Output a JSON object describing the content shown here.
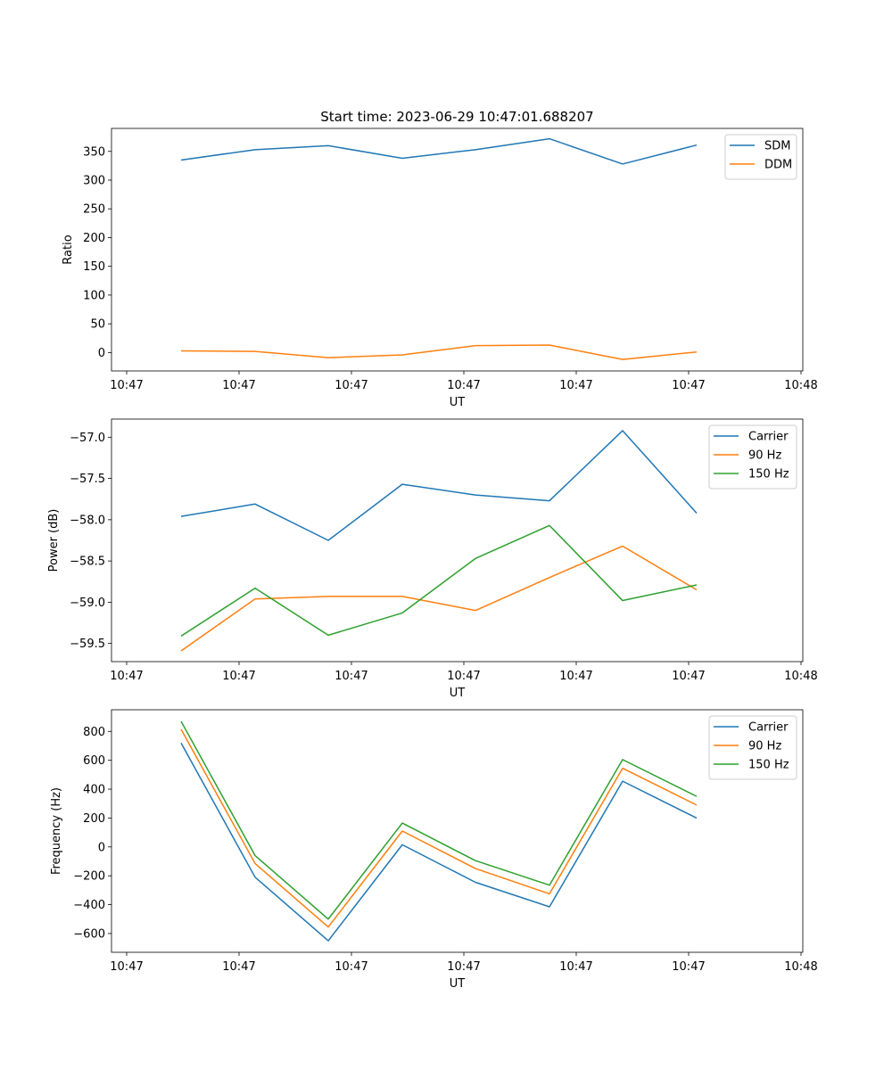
{
  "title": "Start time: 2023-06-29 10:47:01.688207",
  "chart_data": [
    {
      "type": "line",
      "xlabel": "UT",
      "ylabel": "Ratio",
      "x_tick_labels": [
        "10:47",
        "10:47",
        "10:47",
        "10:47",
        "10:47",
        "10:47",
        "10:48"
      ],
      "y_ticks": [
        0,
        50,
        100,
        150,
        200,
        250,
        300,
        350
      ],
      "ylim": [
        -32,
        390
      ],
      "grid": false,
      "legend": "top-right",
      "series": [
        {
          "name": "SDM",
          "color": "#1f77b4",
          "values": [
            335,
            353,
            360,
            338,
            353,
            372,
            328,
            361
          ]
        },
        {
          "name": "DDM",
          "color": "#ff7f0e",
          "values": [
            3,
            2,
            -9,
            -4,
            12,
            13,
            -12,
            1
          ]
        }
      ]
    },
    {
      "type": "line",
      "xlabel": "UT",
      "ylabel": "Power (dB)",
      "x_tick_labels": [
        "10:47",
        "10:47",
        "10:47",
        "10:47",
        "10:47",
        "10:47",
        "10:48"
      ],
      "y_ticks": [
        -59.5,
        -59.0,
        -58.5,
        -58.0,
        -57.5,
        -57.0
      ],
      "y_tick_labels": [
        "−59.5",
        "−59.0",
        "−58.5",
        "−58.0",
        "−57.5",
        "−57.0"
      ],
      "ylim": [
        -59.72,
        -56.78
      ],
      "grid": false,
      "legend": "top-right",
      "series": [
        {
          "name": "Carrier",
          "color": "#1f77b4",
          "values": [
            -57.96,
            -57.81,
            -58.25,
            -57.57,
            -57.7,
            -57.77,
            -56.92,
            -57.92
          ]
        },
        {
          "name": "90 Hz",
          "color": "#ff7f0e",
          "values": [
            -59.59,
            -58.96,
            -58.93,
            -58.93,
            -59.1,
            -58.7,
            -58.32,
            -58.85
          ]
        },
        {
          "name": "150 Hz",
          "color": "#2ca02c",
          "values": [
            -59.41,
            -58.83,
            -59.4,
            -59.13,
            -58.47,
            -58.07,
            -58.98,
            -58.79
          ]
        }
      ]
    },
    {
      "type": "line",
      "xlabel": "UT",
      "ylabel": "Frequency (Hz)",
      "x_tick_labels": [
        "10:47",
        "10:47",
        "10:47",
        "10:47",
        "10:47",
        "10:47",
        "10:48"
      ],
      "y_ticks": [
        -600,
        -400,
        -200,
        0,
        200,
        400,
        600,
        800
      ],
      "y_tick_labels": [
        "−600",
        "−400",
        "−200",
        "0",
        "200",
        "400",
        "600",
        "800"
      ],
      "ylim": [
        -730,
        950
      ],
      "grid": false,
      "legend": "top-right",
      "series": [
        {
          "name": "Carrier",
          "color": "#1f77b4",
          "values": [
            720,
            -210,
            -650,
            15,
            -245,
            -415,
            455,
            200
          ]
        },
        {
          "name": "90 Hz",
          "color": "#ff7f0e",
          "values": [
            815,
            -115,
            -555,
            110,
            -150,
            -325,
            545,
            290
          ]
        },
        {
          "name": "150 Hz",
          "color": "#2ca02c",
          "values": [
            870,
            -60,
            -500,
            165,
            -95,
            -265,
            605,
            350
          ]
        }
      ]
    }
  ]
}
